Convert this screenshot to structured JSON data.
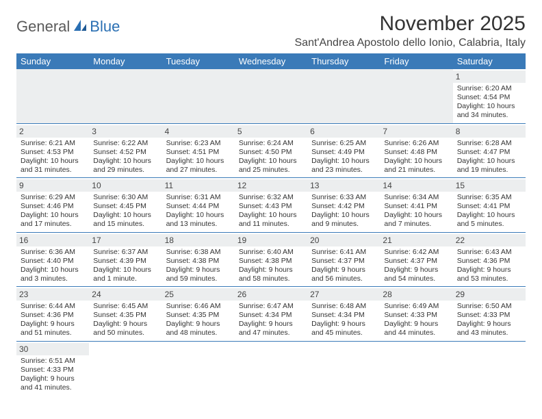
{
  "logo": {
    "part1": "General",
    "part2": "Blue"
  },
  "title": "November 2025",
  "location": "Sant'Andrea Apostolo dello Ionio, Calabria, Italy",
  "colors": {
    "header_bg": "#3a7ab8",
    "header_text": "#ffffff",
    "daynum_bg": "#eceeef",
    "border": "#3a7ab8",
    "logo_gray": "#5a5a5a",
    "logo_blue": "#2a6fb3"
  },
  "day_headers": [
    "Sunday",
    "Monday",
    "Tuesday",
    "Wednesday",
    "Thursday",
    "Friday",
    "Saturday"
  ],
  "weeks": [
    [
      null,
      null,
      null,
      null,
      null,
      null,
      {
        "n": "1",
        "sunrise": "6:20 AM",
        "sunset": "4:54 PM",
        "daylight": "10 hours and 34 minutes."
      }
    ],
    [
      {
        "n": "2",
        "sunrise": "6:21 AM",
        "sunset": "4:53 PM",
        "daylight": "10 hours and 31 minutes."
      },
      {
        "n": "3",
        "sunrise": "6:22 AM",
        "sunset": "4:52 PM",
        "daylight": "10 hours and 29 minutes."
      },
      {
        "n": "4",
        "sunrise": "6:23 AM",
        "sunset": "4:51 PM",
        "daylight": "10 hours and 27 minutes."
      },
      {
        "n": "5",
        "sunrise": "6:24 AM",
        "sunset": "4:50 PM",
        "daylight": "10 hours and 25 minutes."
      },
      {
        "n": "6",
        "sunrise": "6:25 AM",
        "sunset": "4:49 PM",
        "daylight": "10 hours and 23 minutes."
      },
      {
        "n": "7",
        "sunrise": "6:26 AM",
        "sunset": "4:48 PM",
        "daylight": "10 hours and 21 minutes."
      },
      {
        "n": "8",
        "sunrise": "6:28 AM",
        "sunset": "4:47 PM",
        "daylight": "10 hours and 19 minutes."
      }
    ],
    [
      {
        "n": "9",
        "sunrise": "6:29 AM",
        "sunset": "4:46 PM",
        "daylight": "10 hours and 17 minutes."
      },
      {
        "n": "10",
        "sunrise": "6:30 AM",
        "sunset": "4:45 PM",
        "daylight": "10 hours and 15 minutes."
      },
      {
        "n": "11",
        "sunrise": "6:31 AM",
        "sunset": "4:44 PM",
        "daylight": "10 hours and 13 minutes."
      },
      {
        "n": "12",
        "sunrise": "6:32 AM",
        "sunset": "4:43 PM",
        "daylight": "10 hours and 11 minutes."
      },
      {
        "n": "13",
        "sunrise": "6:33 AM",
        "sunset": "4:42 PM",
        "daylight": "10 hours and 9 minutes."
      },
      {
        "n": "14",
        "sunrise": "6:34 AM",
        "sunset": "4:41 PM",
        "daylight": "10 hours and 7 minutes."
      },
      {
        "n": "15",
        "sunrise": "6:35 AM",
        "sunset": "4:41 PM",
        "daylight": "10 hours and 5 minutes."
      }
    ],
    [
      {
        "n": "16",
        "sunrise": "6:36 AM",
        "sunset": "4:40 PM",
        "daylight": "10 hours and 3 minutes."
      },
      {
        "n": "17",
        "sunrise": "6:37 AM",
        "sunset": "4:39 PM",
        "daylight": "10 hours and 1 minute."
      },
      {
        "n": "18",
        "sunrise": "6:38 AM",
        "sunset": "4:38 PM",
        "daylight": "9 hours and 59 minutes."
      },
      {
        "n": "19",
        "sunrise": "6:40 AM",
        "sunset": "4:38 PM",
        "daylight": "9 hours and 58 minutes."
      },
      {
        "n": "20",
        "sunrise": "6:41 AM",
        "sunset": "4:37 PM",
        "daylight": "9 hours and 56 minutes."
      },
      {
        "n": "21",
        "sunrise": "6:42 AM",
        "sunset": "4:37 PM",
        "daylight": "9 hours and 54 minutes."
      },
      {
        "n": "22",
        "sunrise": "6:43 AM",
        "sunset": "4:36 PM",
        "daylight": "9 hours and 53 minutes."
      }
    ],
    [
      {
        "n": "23",
        "sunrise": "6:44 AM",
        "sunset": "4:36 PM",
        "daylight": "9 hours and 51 minutes."
      },
      {
        "n": "24",
        "sunrise": "6:45 AM",
        "sunset": "4:35 PM",
        "daylight": "9 hours and 50 minutes."
      },
      {
        "n": "25",
        "sunrise": "6:46 AM",
        "sunset": "4:35 PM",
        "daylight": "9 hours and 48 minutes."
      },
      {
        "n": "26",
        "sunrise": "6:47 AM",
        "sunset": "4:34 PM",
        "daylight": "9 hours and 47 minutes."
      },
      {
        "n": "27",
        "sunrise": "6:48 AM",
        "sunset": "4:34 PM",
        "daylight": "9 hours and 45 minutes."
      },
      {
        "n": "28",
        "sunrise": "6:49 AM",
        "sunset": "4:33 PM",
        "daylight": "9 hours and 44 minutes."
      },
      {
        "n": "29",
        "sunrise": "6:50 AM",
        "sunset": "4:33 PM",
        "daylight": "9 hours and 43 minutes."
      }
    ],
    [
      {
        "n": "30",
        "sunrise": "6:51 AM",
        "sunset": "4:33 PM",
        "daylight": "9 hours and 41 minutes."
      },
      null,
      null,
      null,
      null,
      null,
      null
    ]
  ],
  "labels": {
    "sunrise": "Sunrise: ",
    "sunset": "Sunset: ",
    "daylight": "Daylight: "
  }
}
